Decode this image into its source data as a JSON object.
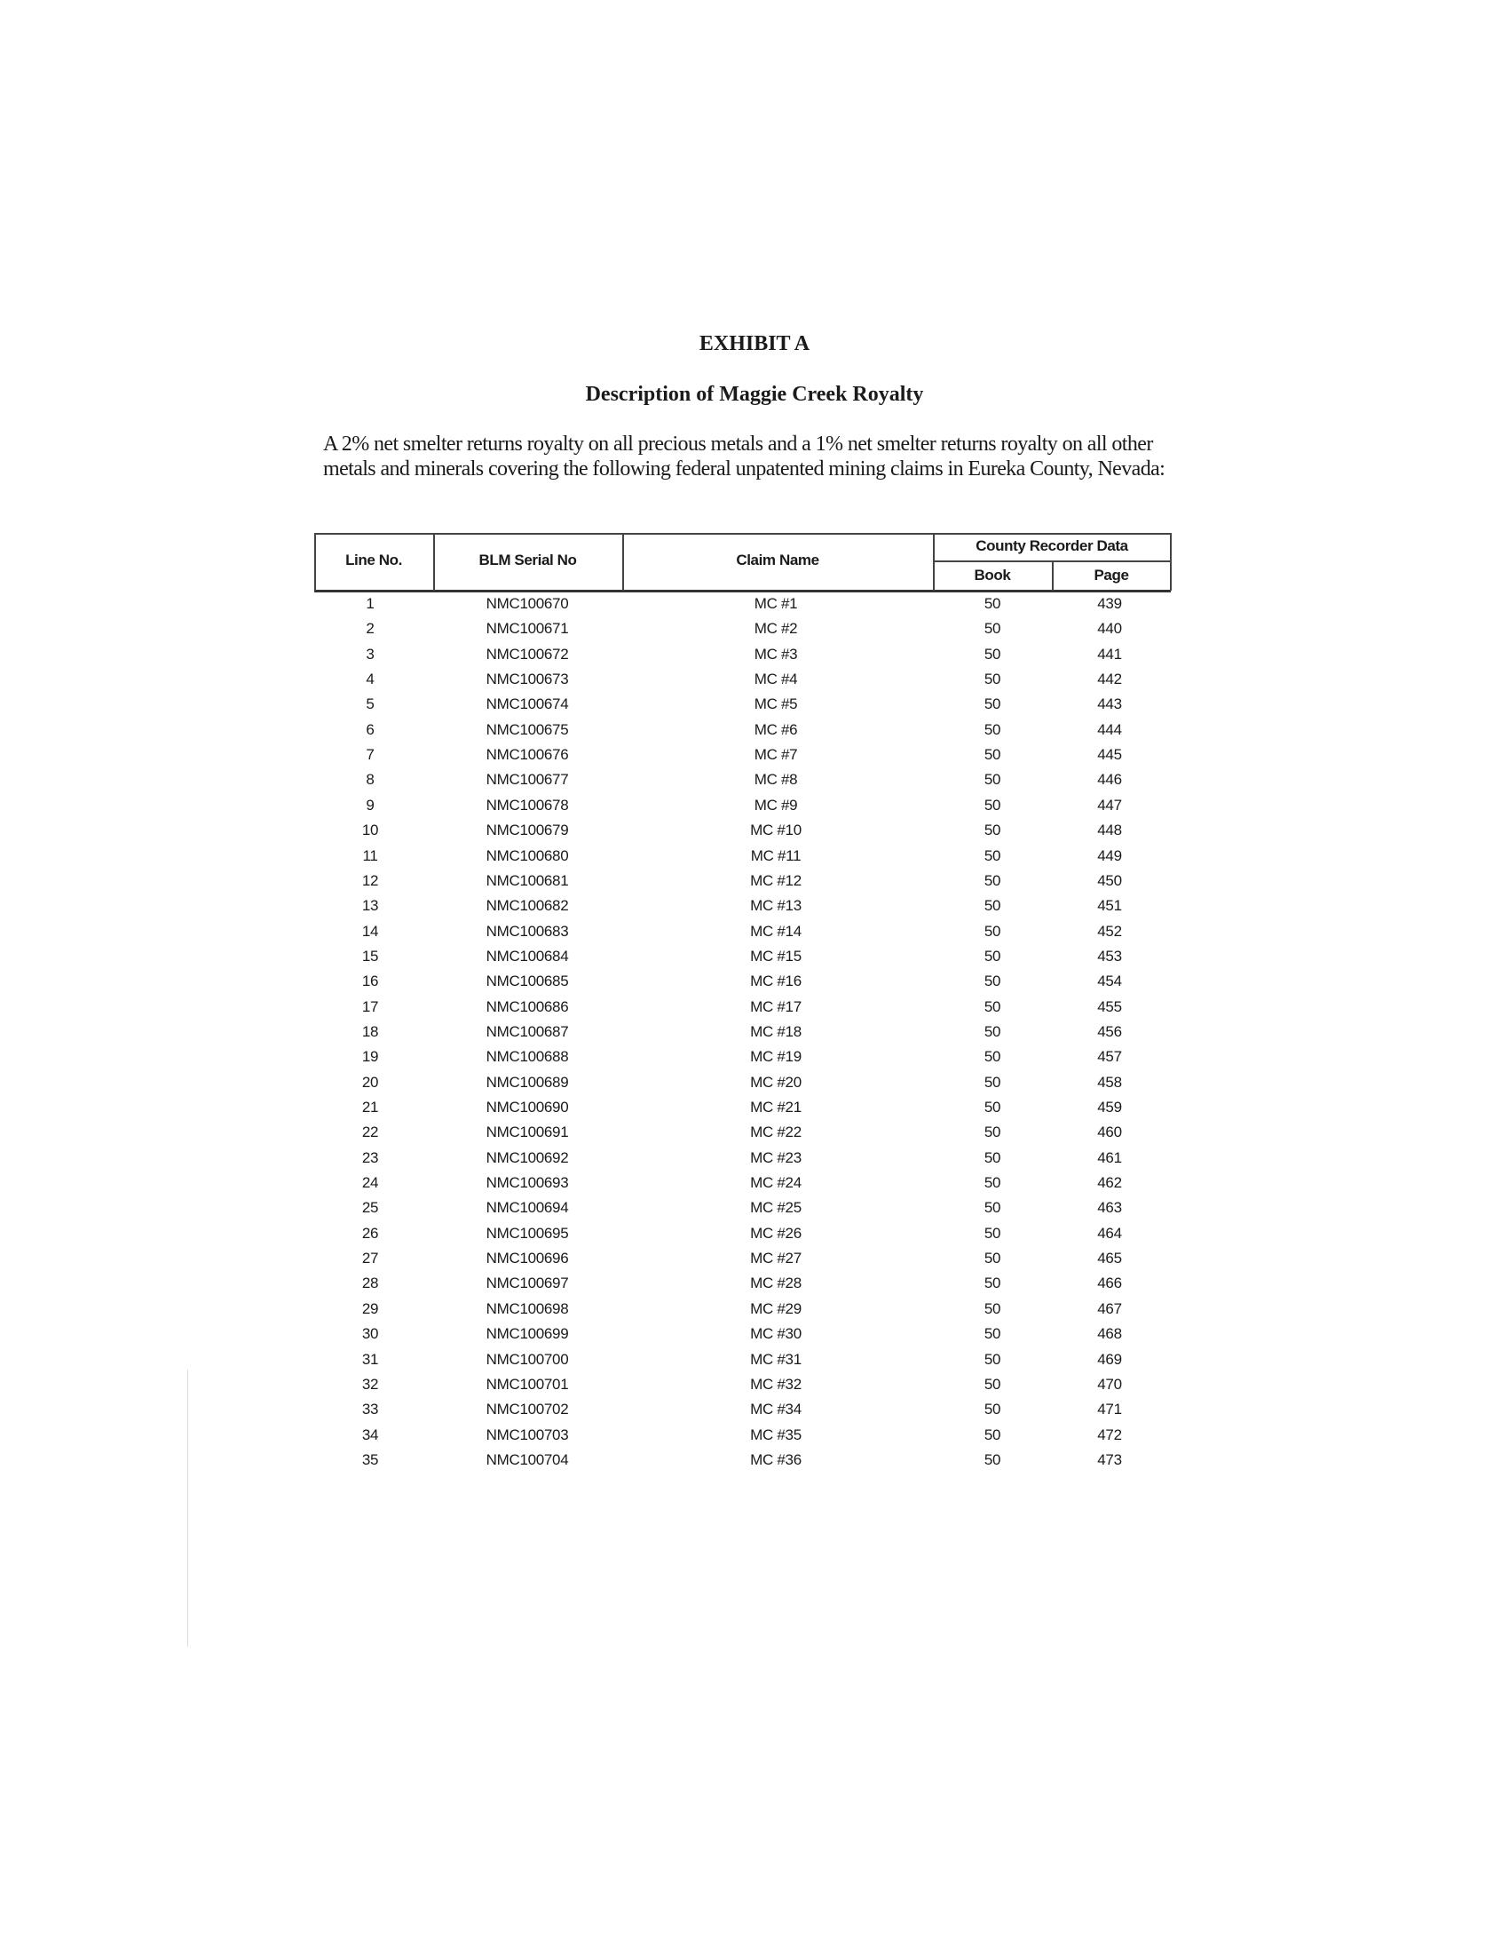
{
  "title": "EXHIBIT A",
  "subtitle": "Description of Maggie Creek Royalty",
  "paragraph": "A 2% net smelter returns royalty on all precious metals and a 1% net smelter returns royalty on all other metals and minerals covering the following federal unpatented mining claims in Eureka County, Nevada:",
  "table": {
    "headers": {
      "line_no": "Line No.",
      "blm_serial": "BLM Serial No",
      "claim_name": "Claim Name",
      "county_group": "County Recorder Data",
      "book": "Book",
      "page": "Page"
    },
    "rows": [
      [
        "1",
        "NMC100670",
        "MC #1",
        "50",
        "439"
      ],
      [
        "2",
        "NMC100671",
        "MC #2",
        "50",
        "440"
      ],
      [
        "3",
        "NMC100672",
        "MC #3",
        "50",
        "441"
      ],
      [
        "4",
        "NMC100673",
        "MC #4",
        "50",
        "442"
      ],
      [
        "5",
        "NMC100674",
        "MC #5",
        "50",
        "443"
      ],
      [
        "6",
        "NMC100675",
        "MC #6",
        "50",
        "444"
      ],
      [
        "7",
        "NMC100676",
        "MC #7",
        "50",
        "445"
      ],
      [
        "8",
        "NMC100677",
        "MC #8",
        "50",
        "446"
      ],
      [
        "9",
        "NMC100678",
        "MC #9",
        "50",
        "447"
      ],
      [
        "10",
        "NMC100679",
        "MC #10",
        "50",
        "448"
      ],
      [
        "11",
        "NMC100680",
        "MC #11",
        "50",
        "449"
      ],
      [
        "12",
        "NMC100681",
        "MC #12",
        "50",
        "450"
      ],
      [
        "13",
        "NMC100682",
        "MC #13",
        "50",
        "451"
      ],
      [
        "14",
        "NMC100683",
        "MC #14",
        "50",
        "452"
      ],
      [
        "15",
        "NMC100684",
        "MC #15",
        "50",
        "453"
      ],
      [
        "16",
        "NMC100685",
        "MC #16",
        "50",
        "454"
      ],
      [
        "17",
        "NMC100686",
        "MC #17",
        "50",
        "455"
      ],
      [
        "18",
        "NMC100687",
        "MC #18",
        "50",
        "456"
      ],
      [
        "19",
        "NMC100688",
        "MC #19",
        "50",
        "457"
      ],
      [
        "20",
        "NMC100689",
        "MC #20",
        "50",
        "458"
      ],
      [
        "21",
        "NMC100690",
        "MC #21",
        "50",
        "459"
      ],
      [
        "22",
        "NMC100691",
        "MC #22",
        "50",
        "460"
      ],
      [
        "23",
        "NMC100692",
        "MC #23",
        "50",
        "461"
      ],
      [
        "24",
        "NMC100693",
        "MC #24",
        "50",
        "462"
      ],
      [
        "25",
        "NMC100694",
        "MC #25",
        "50",
        "463"
      ],
      [
        "26",
        "NMC100695",
        "MC #26",
        "50",
        "464"
      ],
      [
        "27",
        "NMC100696",
        "MC #27",
        "50",
        "465"
      ],
      [
        "28",
        "NMC100697",
        "MC #28",
        "50",
        "466"
      ],
      [
        "29",
        "NMC100698",
        "MC #29",
        "50",
        "467"
      ],
      [
        "30",
        "NMC100699",
        "MC #30",
        "50",
        "468"
      ],
      [
        "31",
        "NMC100700",
        "MC #31",
        "50",
        "469"
      ],
      [
        "32",
        "NMC100701",
        "MC #32",
        "50",
        "470"
      ],
      [
        "33",
        "NMC100702",
        "MC #34",
        "50",
        "471"
      ],
      [
        "34",
        "NMC100703",
        "MC #35",
        "50",
        "472"
      ],
      [
        "35",
        "NMC100704",
        "MC #36",
        "50",
        "473"
      ]
    ]
  }
}
